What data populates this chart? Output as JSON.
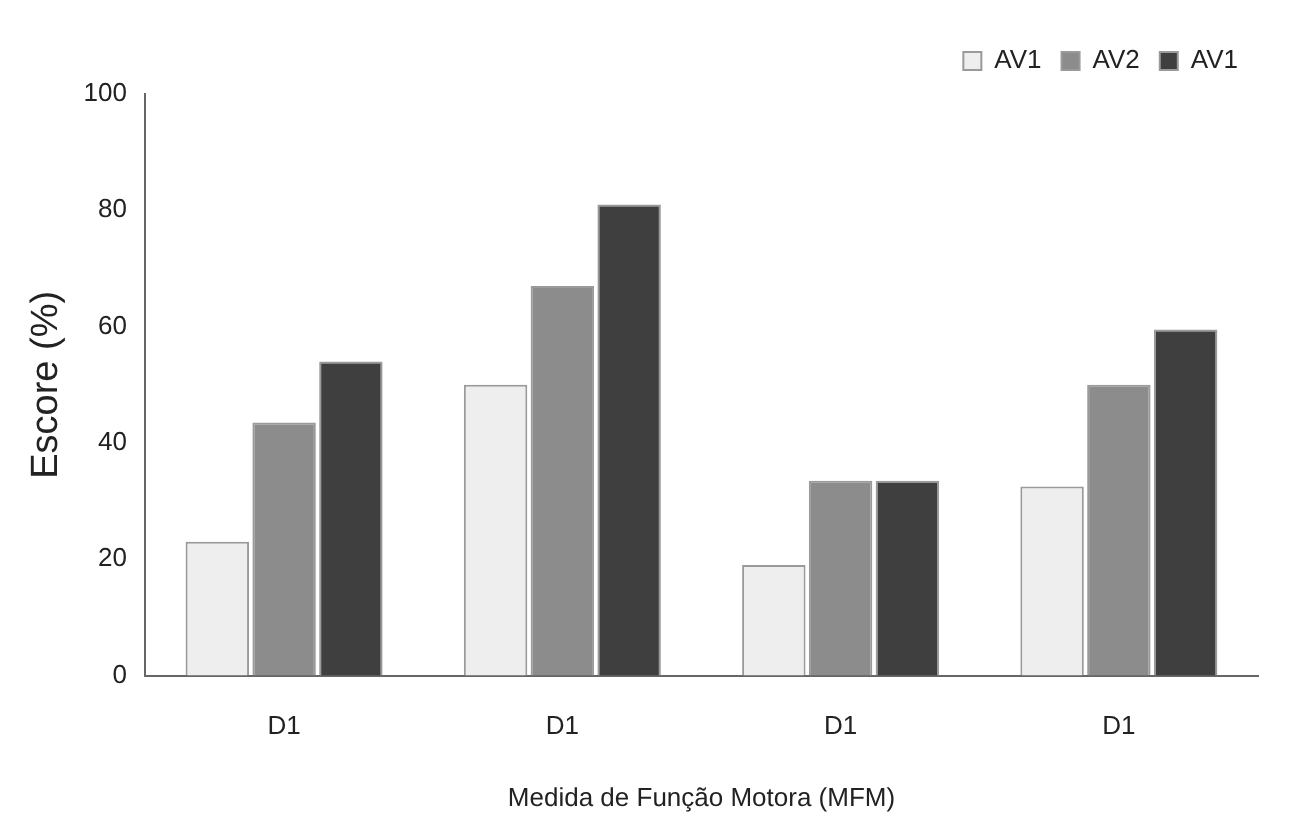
{
  "chart_data": {
    "type": "bar",
    "xlabel": "Medida de Função Motora (MFM)",
    "ylabel": "Escore (%)",
    "categories": [
      "D1",
      "D1",
      "D1",
      "D1"
    ],
    "series": [
      {
        "name": "AV1",
        "color": "#eeeeee",
        "values": [
          23,
          50,
          19,
          32.5
        ]
      },
      {
        "name": "AV2",
        "color": "#8c8c8c",
        "values": [
          43.5,
          67,
          33.5,
          50
        ]
      },
      {
        "name": "AV1",
        "color": "#3f3f3f",
        "values": [
          54,
          81,
          33.5,
          59.5
        ]
      }
    ],
    "ylim": [
      0,
      100
    ],
    "yticks": [
      0,
      20,
      40,
      60,
      80,
      100
    ],
    "grid": false,
    "legend": "top right"
  }
}
